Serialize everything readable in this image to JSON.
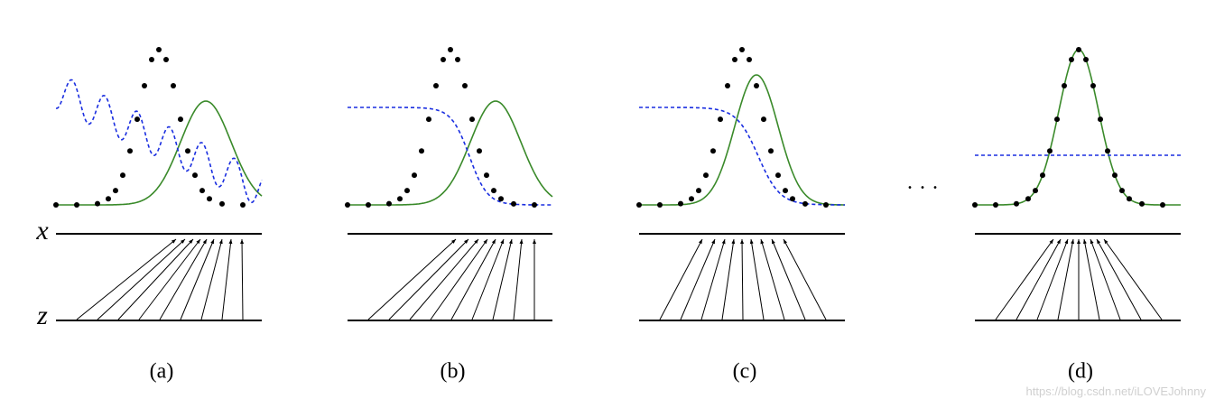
{
  "axis_labels": {
    "x": "x",
    "z": "z"
  },
  "panels": [
    {
      "label": "(a)"
    },
    {
      "label": "(b)"
    },
    {
      "label": "(c)"
    },
    {
      "label": "(d)"
    }
  ],
  "ellipsis": "· · ·",
  "watermark": "https://blog.csdn.net/iLOVEJohnny"
}
